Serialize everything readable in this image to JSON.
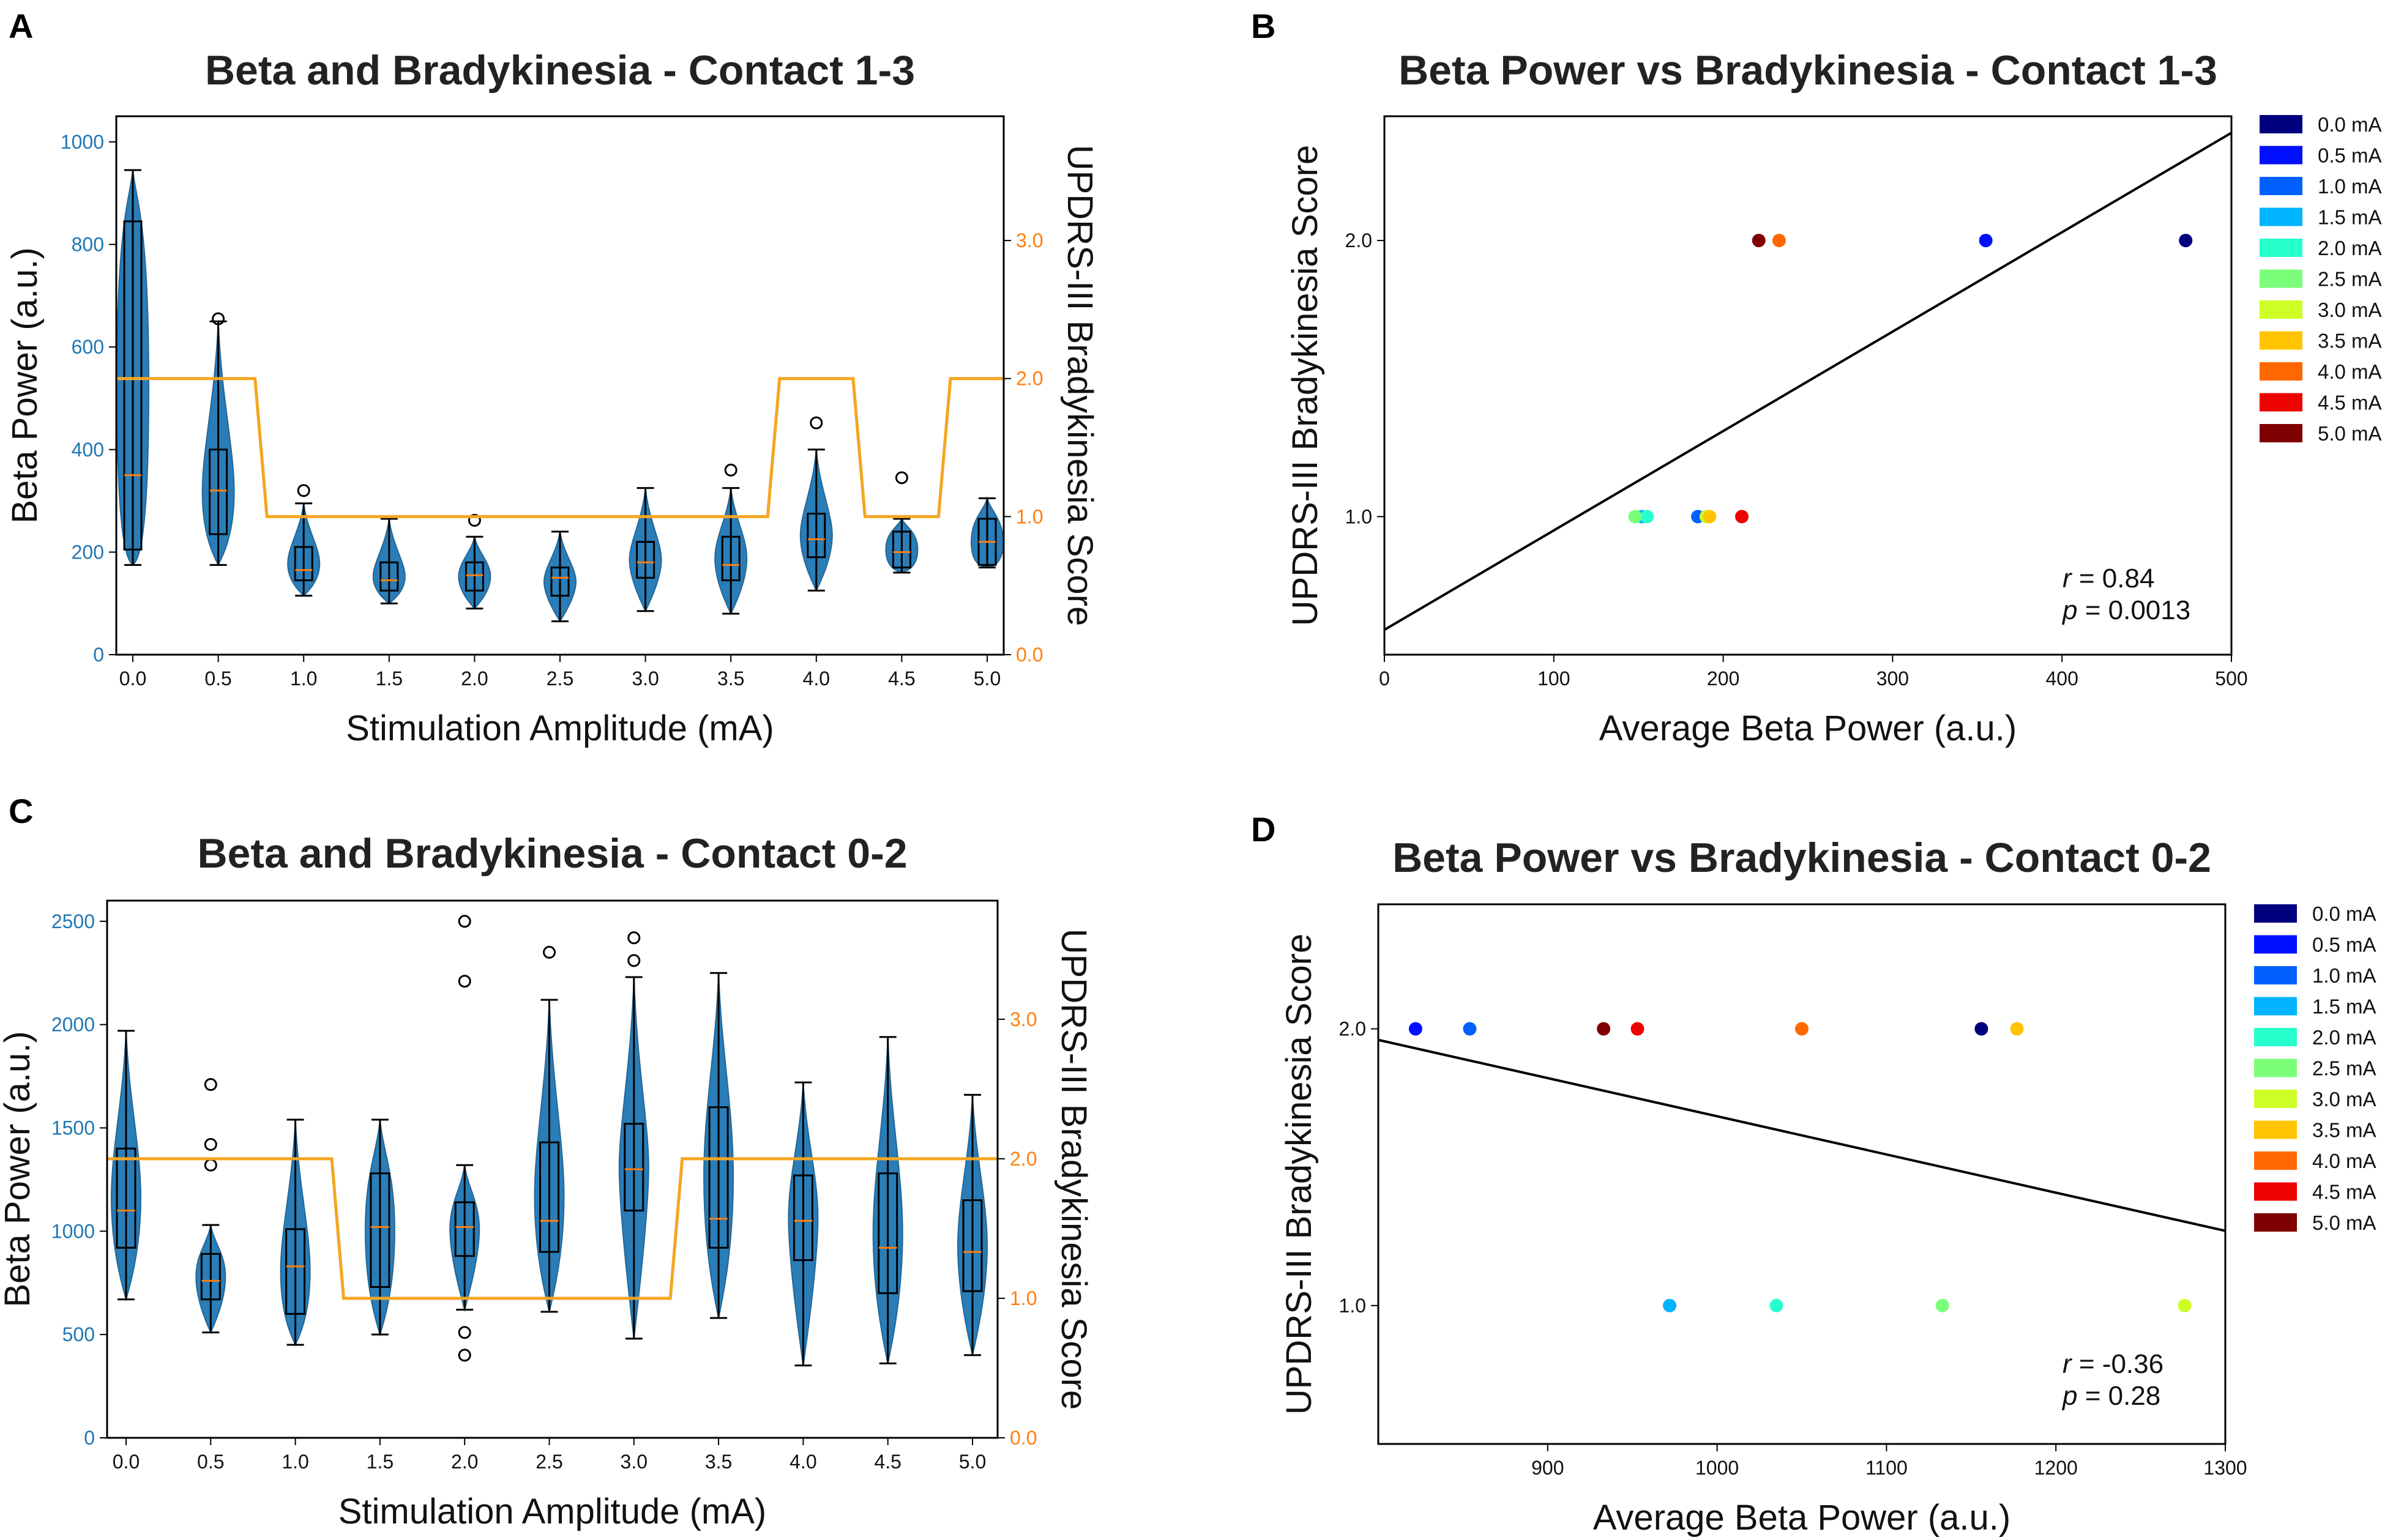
{
  "panel_labels": [
    "A",
    "B",
    "C",
    "D"
  ],
  "colors": {
    "beta": "#1f77b4",
    "updrs": "#ff7f0e",
    "median": "#ff7f0e",
    "step_line": "#f5a623",
    "fit_line": "#000000",
    "amp_colors": [
      "#00007f",
      "#0010ff",
      "#0060ff",
      "#00b4ff",
      "#27ffcd",
      "#7bff7b",
      "#cdff27",
      "#ffc400",
      "#ff6800",
      "#ed0400",
      "#7f0000"
    ]
  },
  "amplitude_labels": [
    "0.0 mA",
    "0.5 mA",
    "1.0 mA",
    "1.5 mA",
    "2.0 mA",
    "2.5 mA",
    "3.0 mA",
    "3.5 mA",
    "4.0 mA",
    "4.5 mA",
    "5.0 mA"
  ],
  "chart_data": [
    {
      "id": "A",
      "type": "violin_box_with_step",
      "title": "Beta and Bradykinesia - Contact 1-3",
      "xlabel": "Stimulation Amplitude (mA)",
      "ylabel": "Beta Power (a.u.)",
      "y2label": "UPDRS-III Bradykinesia Score",
      "categories": [
        "0.0",
        "0.5",
        "1.0",
        "1.5",
        "2.0",
        "2.5",
        "3.0",
        "3.5",
        "4.0",
        "4.5",
        "5.0"
      ],
      "ylim": [
        0,
        1050
      ],
      "yticks": [
        0,
        200,
        400,
        600,
        800,
        1000
      ],
      "y2lim": [
        0,
        3.9
      ],
      "y2ticks": [
        "0.0",
        "1.0",
        "2.0",
        "3.0"
      ],
      "box_stats": [
        {
          "min": 175,
          "q1": 205,
          "median": 350,
          "q3": 845,
          "max": 945,
          "outliers": []
        },
        {
          "min": 175,
          "q1": 235,
          "median": 320,
          "q3": 400,
          "max": 650,
          "outliers": [
            655
          ]
        },
        {
          "min": 115,
          "q1": 145,
          "median": 165,
          "q3": 210,
          "max": 295,
          "outliers": [
            320
          ]
        },
        {
          "min": 100,
          "q1": 125,
          "median": 145,
          "q3": 180,
          "max": 265,
          "outliers": []
        },
        {
          "min": 90,
          "q1": 125,
          "median": 155,
          "q3": 180,
          "max": 230,
          "outliers": [
            262
          ]
        },
        {
          "min": 65,
          "q1": 115,
          "median": 150,
          "q3": 170,
          "max": 240,
          "outliers": []
        },
        {
          "min": 85,
          "q1": 150,
          "median": 180,
          "q3": 220,
          "max": 325,
          "outliers": []
        },
        {
          "min": 80,
          "q1": 145,
          "median": 175,
          "q3": 230,
          "max": 325,
          "outliers": [
            360
          ]
        },
        {
          "min": 125,
          "q1": 190,
          "median": 225,
          "q3": 275,
          "max": 400,
          "outliers": [
            452
          ]
        },
        {
          "min": 160,
          "q1": 170,
          "median": 200,
          "q3": 240,
          "max": 265,
          "outliers": [
            345
          ]
        },
        {
          "min": 170,
          "q1": 175,
          "median": 220,
          "q3": 265,
          "max": 305,
          "outliers": []
        }
      ],
      "updrs_scores": [
        2,
        2,
        1,
        1,
        1,
        1,
        1,
        1,
        2,
        1,
        2
      ]
    },
    {
      "id": "B",
      "type": "scatter",
      "title": "Beta Power vs Bradykinesia - Contact 1-3",
      "xlabel": "Average Beta Power (a.u.)",
      "ylabel": "UPDRS-III Bradykinesia Score",
      "xlim": [
        0,
        500
      ],
      "xticks": [
        "0",
        "100",
        "200",
        "300",
        "400",
        "500"
      ],
      "ylim": [
        0.5,
        2.45
      ],
      "yticks": [
        "1.0",
        "2.0"
      ],
      "points": [
        {
          "amp": "0.0 mA",
          "x": 473,
          "y": 2.0
        },
        {
          "amp": "0.5 mA",
          "x": 355,
          "y": 2.0
        },
        {
          "amp": "1.0 mA",
          "x": 185,
          "y": 1.0
        },
        {
          "amp": "1.5 mA",
          "x": 152,
          "y": 1.0
        },
        {
          "amp": "2.0 mA",
          "x": 155,
          "y": 1.0
        },
        {
          "amp": "2.5 mA",
          "x": 148,
          "y": 1.0
        },
        {
          "amp": "3.0 mA",
          "x": 190,
          "y": 1.0
        },
        {
          "amp": "3.5 mA",
          "x": 192,
          "y": 1.0
        },
        {
          "amp": "4.0 mA",
          "x": 233,
          "y": 2.0
        },
        {
          "amp": "4.5 mA",
          "x": 211,
          "y": 1.0
        },
        {
          "amp": "5.0 mA",
          "x": 221,
          "y": 2.0
        }
      ],
      "fit_line": {
        "x": [
          0,
          500
        ],
        "y": [
          0.59,
          2.39
        ]
      },
      "r_label": "r",
      "r_value": " = 0.84",
      "p_label": "p",
      "p_value": " = 0.0013"
    },
    {
      "id": "C",
      "type": "violin_box_with_step",
      "title": "Beta and Bradykinesia - Contact 0-2",
      "xlabel": "Stimulation Amplitude (mA)",
      "ylabel": "Beta Power (a.u.)",
      "y2label": "UPDRS-III Bradykinesia Score",
      "categories": [
        "0.0",
        "0.5",
        "1.0",
        "1.5",
        "2.0",
        "2.5",
        "3.0",
        "3.5",
        "4.0",
        "4.5",
        "5.0"
      ],
      "ylim": [
        0,
        2600
      ],
      "yticks": [
        0,
        500,
        1000,
        1500,
        2000,
        2500
      ],
      "y2lim": [
        0,
        3.85
      ],
      "y2ticks": [
        "0.0",
        "1.0",
        "2.0",
        "3.0"
      ],
      "box_stats": [
        {
          "min": 670,
          "q1": 920,
          "median": 1100,
          "q3": 1400,
          "max": 1970,
          "outliers": []
        },
        {
          "min": 510,
          "q1": 670,
          "median": 760,
          "q3": 890,
          "max": 1030,
          "outliers": [
            1320,
            1420,
            1710
          ]
        },
        {
          "min": 450,
          "q1": 600,
          "median": 830,
          "q3": 1010,
          "max": 1540,
          "outliers": []
        },
        {
          "min": 500,
          "q1": 730,
          "median": 1020,
          "q3": 1280,
          "max": 1540,
          "outliers": []
        },
        {
          "min": 620,
          "q1": 880,
          "median": 1020,
          "q3": 1140,
          "max": 1320,
          "outliers": [
            400,
            510,
            2210,
            2500
          ]
        },
        {
          "min": 610,
          "q1": 900,
          "median": 1050,
          "q3": 1430,
          "max": 2120,
          "outliers": [
            2350
          ]
        },
        {
          "min": 480,
          "q1": 1100,
          "median": 1300,
          "q3": 1520,
          "max": 2230,
          "outliers": [
            2310,
            2420
          ]
        },
        {
          "min": 580,
          "q1": 920,
          "median": 1060,
          "q3": 1600,
          "max": 2250,
          "outliers": []
        },
        {
          "min": 350,
          "q1": 860,
          "median": 1050,
          "q3": 1270,
          "max": 1720,
          "outliers": []
        },
        {
          "min": 360,
          "q1": 700,
          "median": 920,
          "q3": 1280,
          "max": 1940,
          "outliers": []
        },
        {
          "min": 400,
          "q1": 710,
          "median": 900,
          "q3": 1150,
          "max": 1660,
          "outliers": []
        }
      ],
      "updrs_scores": [
        2,
        2,
        2,
        1,
        1,
        1,
        1,
        2,
        2,
        2,
        2
      ]
    },
    {
      "id": "D",
      "type": "scatter",
      "title": "Beta Power vs Bradykinesia - Contact 0-2",
      "xlabel": "Average Beta Power (a.u.)",
      "ylabel": "UPDRS-III Bradykinesia Score",
      "xlim": [
        800,
        1300
      ],
      "xticks": [
        "900",
        "1000",
        "1100",
        "1200",
        "1300"
      ],
      "ylim": [
        0.5,
        2.45
      ],
      "yticks": [
        "1.0",
        "2.0"
      ],
      "points": [
        {
          "amp": "0.0 mA",
          "x": 1156,
          "y": 2.0
        },
        {
          "amp": "0.5 mA",
          "x": 822,
          "y": 2.0
        },
        {
          "amp": "1.0 mA",
          "x": 854,
          "y": 2.0
        },
        {
          "amp": "1.5 mA",
          "x": 972,
          "y": 1.0
        },
        {
          "amp": "2.0 mA",
          "x": 1035,
          "y": 1.0
        },
        {
          "amp": "2.5 mA",
          "x": 1133,
          "y": 1.0
        },
        {
          "amp": "3.0 mA",
          "x": 1276,
          "y": 1.0
        },
        {
          "amp": "3.5 mA",
          "x": 1177,
          "y": 2.0
        },
        {
          "amp": "4.0 mA",
          "x": 1050,
          "y": 2.0
        },
        {
          "amp": "4.5 mA",
          "x": 953,
          "y": 2.0
        },
        {
          "amp": "5.0 mA",
          "x": 933,
          "y": 2.0
        }
      ],
      "fit_line": {
        "x": [
          800,
          1300
        ],
        "y": [
          1.96,
          1.27
        ]
      },
      "r_label": "r",
      "r_value": " = -0.36",
      "p_label": "p",
      "p_value": " = 0.28"
    }
  ]
}
